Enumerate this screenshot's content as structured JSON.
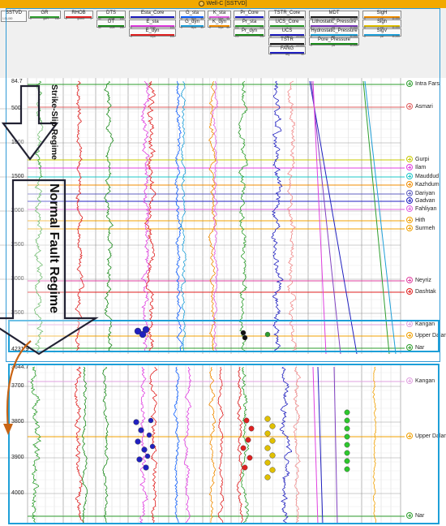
{
  "window": {
    "title": "Well-C [SSTVD]"
  },
  "header": {
    "depth_track": {
      "name": "SSTVD",
      "scale": "1:31,000"
    },
    "tracks": [
      {
        "name": "GR",
        "unit": "gAPI",
        "min": "0",
        "max": "150",
        "color": "#2e9e2e"
      },
      {
        "name": "RHOB",
        "unit": "g/cm3",
        "min": "2",
        "max": "3",
        "color": "#e02020"
      },
      {
        "name": "DTS",
        "unit": "us/ft",
        "min": "40",
        "max": "150",
        "color": "#1a8a1a"
      },
      {
        "name": "DT",
        "unit": "us/ft",
        "min": "40",
        "max": "150",
        "color": "#1a8a1a"
      },
      {
        "name": "Esta_Core",
        "unit": "",
        "min": "",
        "max": "",
        "color": "#2020c0"
      },
      {
        "name": "E_sta",
        "unit": "Mpa",
        "min": "0",
        "max": "100",
        "color": "#e040e0"
      },
      {
        "name": "E_dyn",
        "unit": "Mpa",
        "min": "0",
        "max": "100",
        "color": "#e02020"
      },
      {
        "name": "G_sta",
        "unit": "Mpa",
        "min": "0",
        "max": "40",
        "color": "#1060ff"
      },
      {
        "name": "G_dyn",
        "unit": "Mpa",
        "min": "0",
        "max": "40",
        "color": "#1e9fd8"
      },
      {
        "name": "K_sta",
        "unit": "Mpa",
        "min": "0",
        "max": "60",
        "color": "#e060e0"
      },
      {
        "name": "K_dyn",
        "unit": "Mpa",
        "min": "0",
        "max": "60",
        "color": "#f08c00"
      },
      {
        "name": "Pr_Core",
        "unit": "",
        "min": "",
        "max": "",
        "color": "#2020c0"
      },
      {
        "name": "Pr_sta",
        "unit": "",
        "min": "0.1",
        "max": "0.5",
        "color": "#2e9e2e"
      },
      {
        "name": "Pr_dyn",
        "unit": "",
        "min": "0.1",
        "max": "0.5",
        "color": "#1a8a1a"
      },
      {
        "name": "TSTR_Core",
        "unit": "",
        "min": "",
        "max": "",
        "color": "#222"
      },
      {
        "name": "UCS_Core",
        "unit": "",
        "min": "",
        "max": "",
        "color": "#2e9e2e"
      },
      {
        "name": "UCS",
        "unit": "psi",
        "min": "0",
        "max": "20,000",
        "color": "#2020c0"
      },
      {
        "name": "TSTR",
        "unit": "psi",
        "min": "0",
        "max": "20,000",
        "color": "#222"
      },
      {
        "name": "FANG",
        "unit": "deg",
        "min": "0",
        "max": "50",
        "color": "#2020c0"
      },
      {
        "name": "MDT",
        "unit": "psi",
        "min": "0",
        "max": "11,000",
        "color": "#222"
      },
      {
        "name": "Lithostatic_Pressure",
        "unit": "psi",
        "min": "0",
        "max": "11,000",
        "color": "#8040c0"
      },
      {
        "name": "Hydrostatic_Pressure",
        "unit": "psi",
        "min": "0",
        "max": "11,000",
        "color": "#1e9fd8"
      },
      {
        "name": "Pore_Pressure",
        "unit": "psi",
        "min": "0",
        "max": "11,000",
        "color": "#1a8a1a"
      },
      {
        "name": "SigH",
        "unit": "psi",
        "min": "0",
        "max": "11,000",
        "color": "#f08c00"
      },
      {
        "name": "Sigh",
        "unit": "psi",
        "min": "0",
        "max": "11,000",
        "color": "#e0c000"
      },
      {
        "name": "SigV",
        "unit": "psi",
        "min": "0",
        "max": "11,000",
        "color": "#1e9fd8"
      }
    ]
  },
  "upper_panel": {
    "top_depth": "84.7",
    "bottom_depth": "4231.9",
    "depth_ticks": [
      "500",
      "1000",
      "1500",
      "2000",
      "2500",
      "3000",
      "3500"
    ],
    "formations": [
      "Intra Fars",
      "Asmari",
      "Gurpi",
      "Ilam",
      "Mauddud",
      "Kazhdumi",
      "Dariyan",
      "Gadvan",
      "Fahliyan",
      "Hith",
      "Surmeh",
      "Neyriz",
      "Dashtak",
      "Kangan",
      "Upper Dalan",
      "Nar"
    ],
    "regimes": {
      "strike_slip": "Strike-Slip Regime",
      "normal_fault": "Normal Fault Regime"
    }
  },
  "lower_panel": {
    "top_depth": "3644.7",
    "depth_ticks": [
      "3700",
      "3800",
      "3900",
      "4000"
    ],
    "formations": [
      "Kangan",
      "Upper Dalan",
      "Nar"
    ]
  }
}
